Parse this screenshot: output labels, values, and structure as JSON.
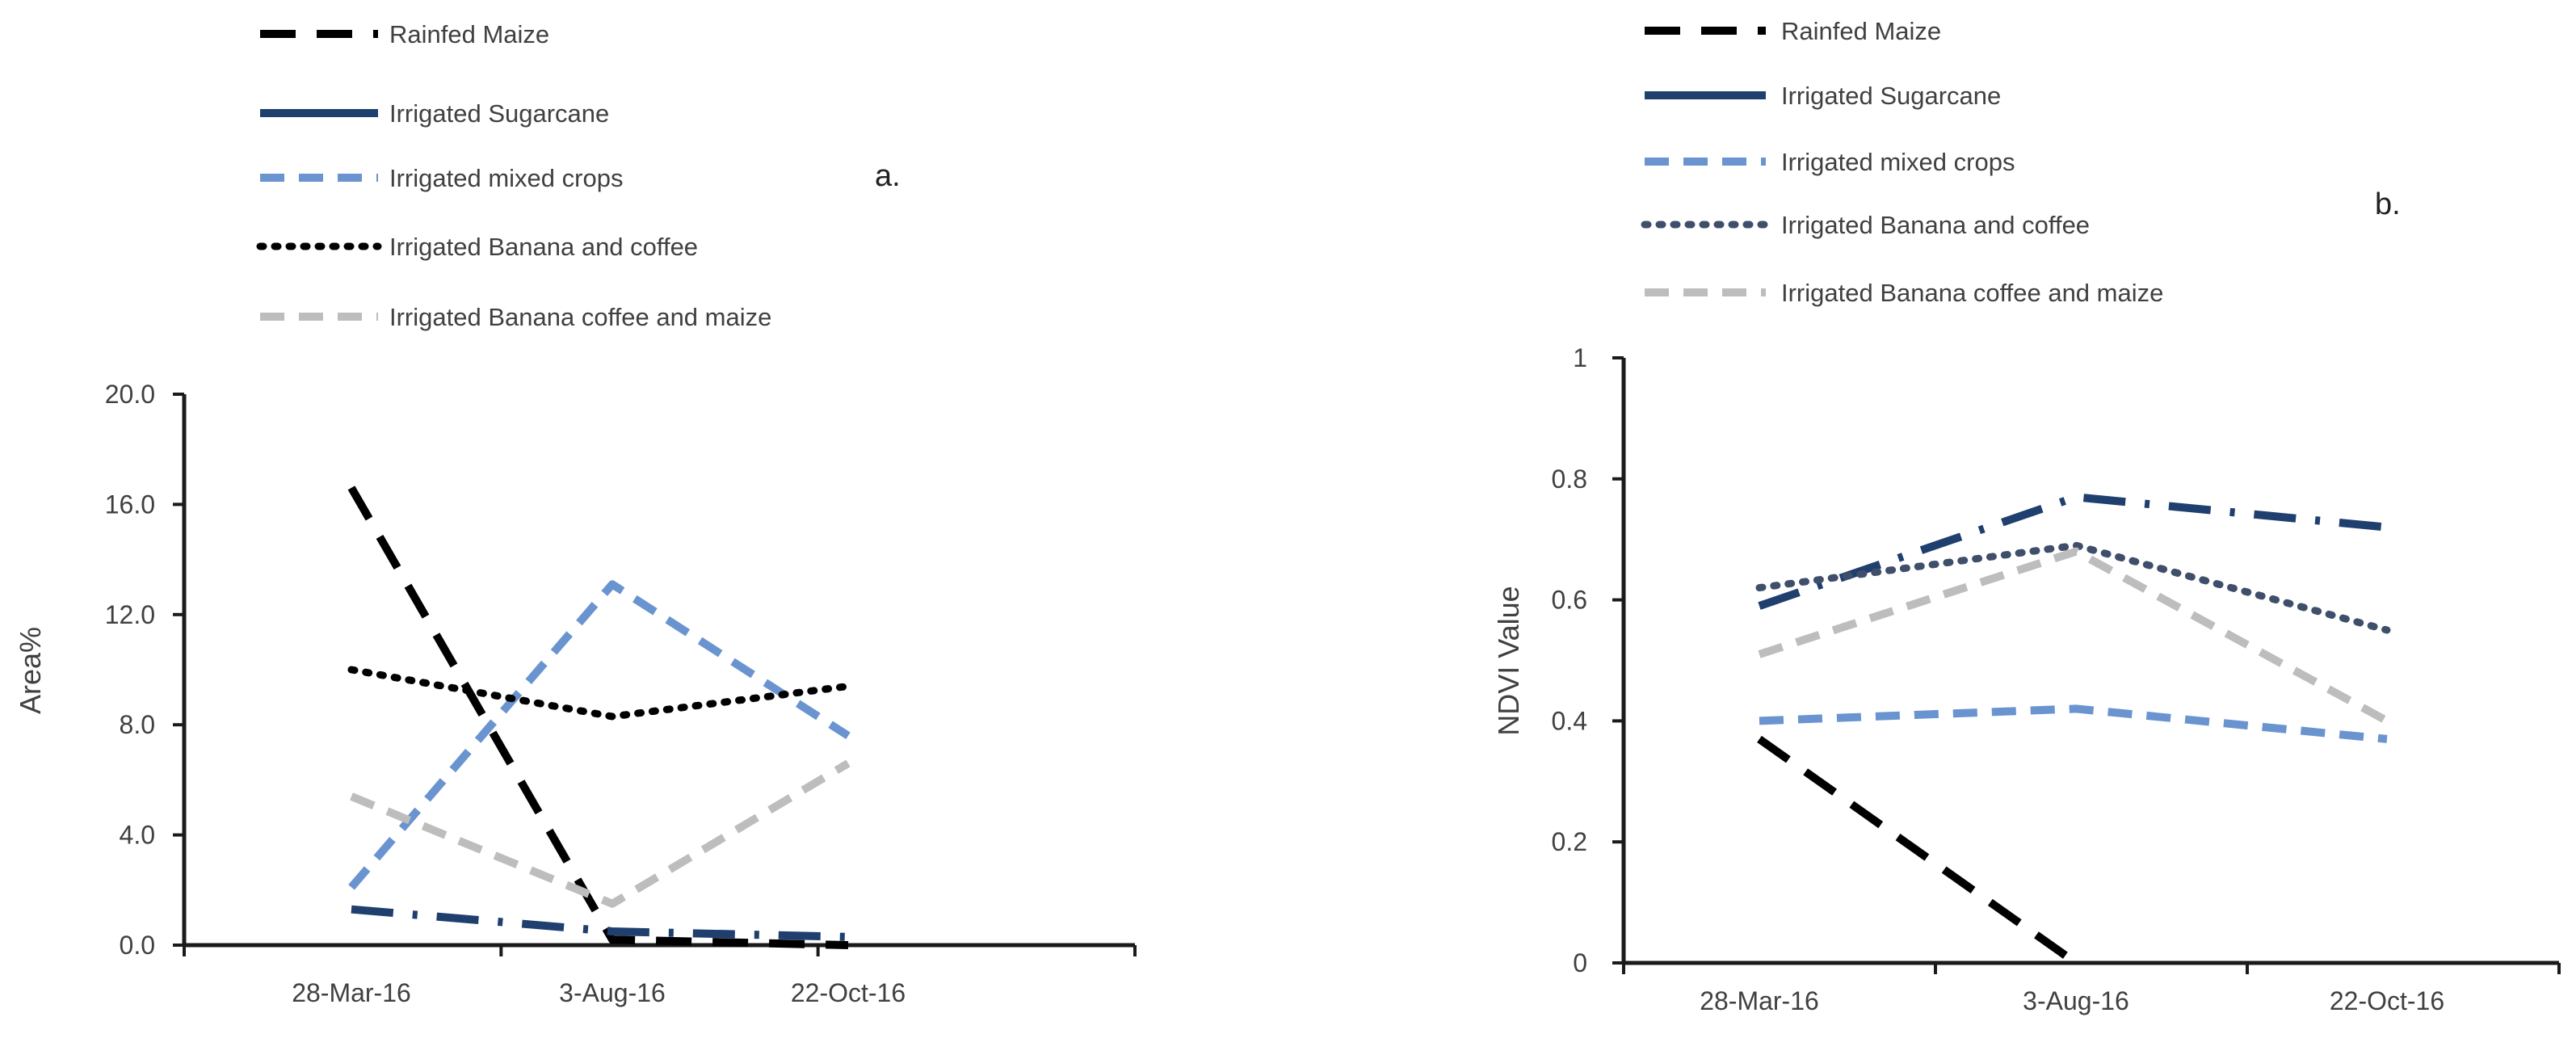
{
  "styles": {
    "Rainfed Maize": {
      "color": "#000000",
      "dash": "long-dash"
    },
    "Irrigated Sugarcane": {
      "color": "#1F3F6E",
      "dash": "long-dash-dot"
    },
    "Irrigated mixed crops": {
      "color": "#6A94CF",
      "dash": "dash"
    },
    "Irrigated Banana and coffee": {
      "color": "#000000",
      "dash": "dot",
      "color_b": "#3F4E6A"
    },
    "Irrigated Banana coffee and maize": {
      "color": "#BDBDBD",
      "dash": "dash"
    }
  },
  "chart_data": [
    {
      "type": "line",
      "panel": "a.",
      "title": "",
      "xlabel": "",
      "ylabel": "Area%",
      "categories": [
        "28-Mar-16",
        "3-Aug-16",
        "22-Oct-16"
      ],
      "ylim": [
        0,
        20
      ],
      "yticks": [
        "0.0",
        "4.0",
        "8.0",
        "12.0",
        "16.0",
        "20.0"
      ],
      "legend_position": "top",
      "series": [
        {
          "name": "Rainfed Maize",
          "values": [
            16.6,
            0.2,
            0.0
          ]
        },
        {
          "name": "Irrigated Sugarcane",
          "values": [
            1.3,
            0.5,
            0.3
          ]
        },
        {
          "name": "Irrigated mixed crops",
          "values": [
            2.1,
            13.1,
            7.6
          ]
        },
        {
          "name": "Irrigated Banana and coffee",
          "values": [
            10.0,
            8.3,
            9.4
          ]
        },
        {
          "name": "Irrigated Banana coffee and maize",
          "values": [
            5.4,
            1.5,
            6.6
          ]
        }
      ]
    },
    {
      "type": "line",
      "panel": "b.",
      "title": "",
      "xlabel": "",
      "ylabel": "NDVI Value",
      "categories": [
        "28-Mar-16",
        "3-Aug-16",
        "22-Oct-16"
      ],
      "ylim": [
        0,
        1
      ],
      "yticks": [
        "0",
        "0.2",
        "0.4",
        "0.6",
        "0.8",
        "1"
      ],
      "legend_position": "top",
      "series": [
        {
          "name": "Rainfed Maize",
          "values": [
            0.37,
            0.0,
            null
          ]
        },
        {
          "name": "Irrigated Sugarcane",
          "values": [
            0.59,
            0.77,
            0.72
          ]
        },
        {
          "name": "Irrigated mixed crops",
          "values": [
            0.4,
            0.42,
            0.37
          ]
        },
        {
          "name": "Irrigated Banana and coffee",
          "values": [
            0.62,
            0.69,
            0.55
          ]
        },
        {
          "name": "Irrigated Banana coffee and maize",
          "values": [
            0.51,
            0.68,
            0.4
          ]
        }
      ]
    }
  ]
}
